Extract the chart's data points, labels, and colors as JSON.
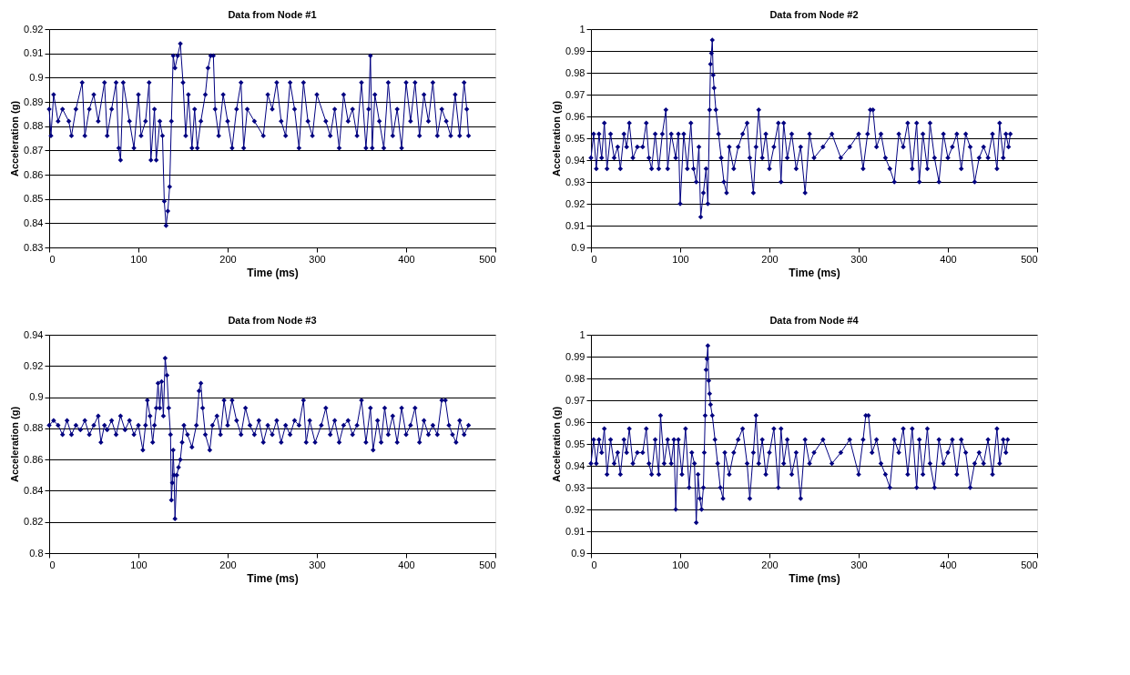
{
  "chart_data": [
    {
      "type": "line",
      "title": "Data from Node #1",
      "xlabel": "Time (ms)",
      "ylabel": "Acceleration (g)",
      "marker": "diamond",
      "line_style": "solid",
      "grid": "y",
      "xlim": [
        0,
        500
      ],
      "xticks": [
        0,
        100,
        200,
        300,
        400,
        500
      ],
      "ylim": [
        0.83,
        0.92
      ],
      "yticks": [
        0.83,
        0.84,
        0.85,
        0.86,
        0.87,
        0.88,
        0.89,
        0.9,
        0.91,
        0.92
      ],
      "series": [
        {
          "color": "#000080",
          "x": [
            0,
            2,
            5,
            10,
            15,
            22,
            25,
            30,
            37,
            40,
            45,
            50,
            55,
            62,
            65,
            70,
            75,
            78,
            80,
            83,
            90,
            95,
            100,
            103,
            108,
            112,
            114,
            118,
            120,
            124,
            127,
            129,
            131,
            133,
            135,
            137,
            139,
            141,
            144,
            147,
            150,
            153,
            156,
            160,
            163,
            166,
            170,
            175,
            178,
            181,
            184,
            186,
            190,
            195,
            200,
            205,
            210,
            215,
            218,
            222,
            230,
            240,
            245,
            250,
            255,
            260,
            265,
            270,
            275,
            280,
            285,
            290,
            295,
            300,
            310,
            315,
            320,
            325,
            330,
            335,
            340,
            345,
            350,
            355,
            358,
            360,
            362,
            365,
            370,
            375,
            380,
            385,
            390,
            395,
            400,
            405,
            410,
            415,
            420,
            425,
            430,
            435,
            440,
            445,
            450,
            455,
            460,
            465,
            468,
            470
          ],
          "values": [
            0.887,
            0.876,
            0.893,
            0.882,
            0.887,
            0.882,
            0.876,
            0.887,
            0.898,
            0.876,
            0.887,
            0.893,
            0.882,
            0.898,
            0.876,
            0.887,
            0.898,
            0.871,
            0.866,
            0.898,
            0.882,
            0.871,
            0.893,
            0.876,
            0.882,
            0.898,
            0.866,
            0.887,
            0.866,
            0.882,
            0.876,
            0.849,
            0.839,
            0.845,
            0.855,
            0.882,
            0.909,
            0.904,
            0.909,
            0.914,
            0.898,
            0.876,
            0.893,
            0.871,
            0.887,
            0.871,
            0.882,
            0.893,
            0.904,
            0.909,
            0.909,
            0.887,
            0.876,
            0.893,
            0.882,
            0.871,
            0.887,
            0.898,
            0.871,
            0.887,
            0.882,
            0.876,
            0.893,
            0.887,
            0.898,
            0.882,
            0.876,
            0.898,
            0.887,
            0.871,
            0.898,
            0.882,
            0.876,
            0.893,
            0.882,
            0.876,
            0.887,
            0.871,
            0.893,
            0.882,
            0.887,
            0.876,
            0.898,
            0.871,
            0.887,
            0.909,
            0.871,
            0.893,
            0.882,
            0.871,
            0.898,
            0.876,
            0.887,
            0.871,
            0.898,
            0.882,
            0.898,
            0.876,
            0.893,
            0.882,
            0.898,
            0.876,
            0.887,
            0.882,
            0.876,
            0.893,
            0.876,
            0.898,
            0.887,
            0.876
          ]
        }
      ]
    },
    {
      "type": "line",
      "title": "Data from Node #2",
      "xlabel": "Time (ms)",
      "ylabel": "Acceleration (g)",
      "marker": "diamond",
      "line_style": "solid",
      "grid": "y",
      "xlim": [
        0,
        500
      ],
      "xticks": [
        0,
        100,
        200,
        300,
        400,
        500
      ],
      "ylim": [
        0.9,
        1
      ],
      "yticks": [
        0.9,
        0.91,
        0.92,
        0.93,
        0.94,
        0.95,
        0.96,
        0.97,
        0.98,
        0.99,
        1
      ],
      "series": [
        {
          "color": "#000080",
          "x": [
            0,
            3,
            6,
            9,
            12,
            15,
            18,
            22,
            26,
            30,
            33,
            37,
            40,
            43,
            47,
            52,
            58,
            62,
            65,
            68,
            72,
            76,
            80,
            84,
            86,
            90,
            95,
            98,
            100,
            104,
            108,
            112,
            115,
            118,
            121,
            123,
            126,
            129,
            131,
            133,
            134,
            135,
            136,
            137,
            138,
            140,
            143,
            146,
            149,
            152,
            155,
            160,
            165,
            170,
            175,
            178,
            182,
            185,
            188,
            192,
            196,
            200,
            205,
            210,
            213,
            216,
            220,
            225,
            230,
            235,
            240,
            245,
            250,
            260,
            270,
            280,
            290,
            300,
            305,
            310,
            313,
            316,
            320,
            325,
            330,
            335,
            340,
            345,
            350,
            355,
            360,
            365,
            368,
            372,
            377,
            380,
            385,
            390,
            395,
            400,
            405,
            410,
            415,
            420,
            425,
            430,
            435,
            440,
            445,
            450,
            455,
            458,
            462,
            465,
            468,
            470
          ],
          "values": [
            0.941,
            0.952,
            0.936,
            0.952,
            0.941,
            0.957,
            0.936,
            0.952,
            0.941,
            0.946,
            0.936,
            0.952,
            0.946,
            0.957,
            0.941,
            0.946,
            0.946,
            0.957,
            0.941,
            0.936,
            0.952,
            0.936,
            0.952,
            0.963,
            0.936,
            0.952,
            0.941,
            0.952,
            0.92,
            0.952,
            0.936,
            0.957,
            0.936,
            0.93,
            0.946,
            0.914,
            0.925,
            0.936,
            0.92,
            0.963,
            0.984,
            0.989,
            0.995,
            0.979,
            0.973,
            0.963,
            0.952,
            0.941,
            0.93,
            0.925,
            0.946,
            0.936,
            0.946,
            0.952,
            0.957,
            0.941,
            0.925,
            0.946,
            0.963,
            0.941,
            0.952,
            0.936,
            0.946,
            0.957,
            0.93,
            0.957,
            0.941,
            0.952,
            0.936,
            0.946,
            0.925,
            0.952,
            0.941,
            0.946,
            0.952,
            0.941,
            0.946,
            0.952,
            0.936,
            0.952,
            0.963,
            0.963,
            0.946,
            0.952,
            0.941,
            0.936,
            0.93,
            0.952,
            0.946,
            0.957,
            0.936,
            0.957,
            0.93,
            0.952,
            0.936,
            0.957,
            0.941,
            0.93,
            0.952,
            0.941,
            0.946,
            0.952,
            0.936,
            0.952,
            0.946,
            0.93,
            0.941,
            0.946,
            0.941,
            0.952,
            0.936,
            0.957,
            0.941,
            0.952,
            0.946,
            0.952
          ]
        }
      ]
    },
    {
      "type": "line",
      "title": "Data from Node #3",
      "xlabel": "Time (ms)",
      "ylabel": "Acceleration (g)",
      "marker": "diamond",
      "line_style": "solid",
      "grid": "y",
      "xlim": [
        0,
        500
      ],
      "xticks": [
        0,
        100,
        200,
        300,
        400,
        500
      ],
      "ylim": [
        0.8,
        0.94
      ],
      "yticks": [
        0.8,
        0.82,
        0.84,
        0.86,
        0.88,
        0.9,
        0.92,
        0.94
      ],
      "series": [
        {
          "color": "#000080",
          "x": [
            0,
            5,
            10,
            15,
            20,
            25,
            30,
            35,
            40,
            45,
            50,
            55,
            58,
            62,
            65,
            70,
            75,
            80,
            85,
            90,
            95,
            100,
            105,
            108,
            110,
            113,
            116,
            118,
            120,
            122,
            124,
            126,
            128,
            130,
            132,
            134,
            136,
            137,
            138,
            139,
            140,
            141,
            143,
            145,
            147,
            149,
            151,
            155,
            160,
            165,
            168,
            170,
            172,
            175,
            180,
            183,
            188,
            192,
            196,
            200,
            205,
            210,
            215,
            220,
            225,
            230,
            235,
            240,
            245,
            250,
            255,
            260,
            265,
            270,
            275,
            280,
            285,
            288,
            292,
            298,
            305,
            310,
            315,
            320,
            325,
            330,
            335,
            340,
            345,
            350,
            355,
            360,
            363,
            368,
            372,
            376,
            380,
            385,
            390,
            395,
            400,
            405,
            410,
            415,
            420,
            425,
            430,
            435,
            440,
            444,
            448,
            452,
            456,
            460,
            465,
            470
          ],
          "values": [
            0.882,
            0.885,
            0.882,
            0.876,
            0.885,
            0.876,
            0.882,
            0.879,
            0.885,
            0.876,
            0.882,
            0.888,
            0.871,
            0.882,
            0.879,
            0.885,
            0.876,
            0.888,
            0.879,
            0.885,
            0.876,
            0.882,
            0.866,
            0.882,
            0.898,
            0.888,
            0.871,
            0.882,
            0.893,
            0.909,
            0.893,
            0.91,
            0.888,
            0.925,
            0.914,
            0.893,
            0.876,
            0.834,
            0.845,
            0.866,
            0.85,
            0.822,
            0.85,
            0.855,
            0.86,
            0.871,
            0.882,
            0.876,
            0.868,
            0.882,
            0.904,
            0.909,
            0.893,
            0.876,
            0.866,
            0.882,
            0.888,
            0.876,
            0.898,
            0.882,
            0.898,
            0.885,
            0.876,
            0.893,
            0.882,
            0.876,
            0.885,
            0.871,
            0.882,
            0.876,
            0.885,
            0.871,
            0.882,
            0.876,
            0.885,
            0.882,
            0.898,
            0.871,
            0.885,
            0.871,
            0.882,
            0.893,
            0.876,
            0.885,
            0.871,
            0.882,
            0.885,
            0.876,
            0.882,
            0.898,
            0.871,
            0.893,
            0.866,
            0.885,
            0.871,
            0.893,
            0.876,
            0.888,
            0.871,
            0.893,
            0.876,
            0.882,
            0.893,
            0.871,
            0.885,
            0.876,
            0.882,
            0.876,
            0.898,
            0.898,
            0.882,
            0.876,
            0.871,
            0.885,
            0.876,
            0.882
          ]
        }
      ]
    },
    {
      "type": "line",
      "title": "Data from Node #4",
      "xlabel": "Time (ms)",
      "ylabel": "Acceleration (g)",
      "marker": "diamond",
      "line_style": "solid",
      "grid": "y",
      "xlim": [
        0,
        500
      ],
      "xticks": [
        0,
        100,
        200,
        300,
        400,
        500
      ],
      "ylim": [
        0.9,
        1
      ],
      "yticks": [
        0.9,
        0.91,
        0.92,
        0.93,
        0.94,
        0.95,
        0.96,
        0.97,
        0.98,
        0.99,
        1
      ],
      "series": [
        {
          "color": "#000080",
          "x": [
            0,
            3,
            6,
            9,
            12,
            15,
            18,
            22,
            26,
            30,
            33,
            37,
            40,
            43,
            47,
            52,
            58,
            62,
            65,
            68,
            72,
            76,
            78,
            82,
            86,
            90,
            93,
            95,
            98,
            102,
            106,
            110,
            113,
            116,
            118,
            120,
            122,
            124,
            126,
            127,
            128,
            129,
            130,
            131,
            132,
            133,
            134,
            136,
            139,
            142,
            145,
            148,
            150,
            155,
            160,
            165,
            170,
            175,
            178,
            182,
            185,
            188,
            192,
            196,
            200,
            205,
            210,
            213,
            216,
            220,
            225,
            230,
            235,
            240,
            245,
            250,
            260,
            270,
            280,
            290,
            300,
            305,
            308,
            311,
            315,
            320,
            325,
            330,
            335,
            340,
            345,
            350,
            355,
            360,
            365,
            368,
            372,
            377,
            380,
            385,
            390,
            395,
            400,
            405,
            410,
            415,
            420,
            425,
            430,
            435,
            440,
            445,
            450,
            455,
            458,
            462,
            465,
            467
          ],
          "values": [
            0.941,
            0.952,
            0.941,
            0.952,
            0.946,
            0.957,
            0.936,
            0.952,
            0.941,
            0.946,
            0.936,
            0.952,
            0.946,
            0.957,
            0.941,
            0.946,
            0.946,
            0.957,
            0.941,
            0.936,
            0.952,
            0.936,
            0.963,
            0.941,
            0.952,
            0.941,
            0.952,
            0.92,
            0.952,
            0.936,
            0.957,
            0.93,
            0.946,
            0.941,
            0.914,
            0.936,
            0.925,
            0.92,
            0.93,
            0.946,
            0.963,
            0.984,
            0.989,
            0.995,
            0.979,
            0.973,
            0.968,
            0.963,
            0.952,
            0.941,
            0.93,
            0.925,
            0.946,
            0.936,
            0.946,
            0.952,
            0.957,
            0.941,
            0.925,
            0.946,
            0.963,
            0.941,
            0.952,
            0.936,
            0.946,
            0.957,
            0.93,
            0.957,
            0.941,
            0.952,
            0.936,
            0.946,
            0.925,
            0.952,
            0.941,
            0.946,
            0.952,
            0.941,
            0.946,
            0.952,
            0.936,
            0.952,
            0.963,
            0.963,
            0.946,
            0.952,
            0.941,
            0.936,
            0.93,
            0.952,
            0.946,
            0.957,
            0.936,
            0.957,
            0.93,
            0.952,
            0.936,
            0.957,
            0.941,
            0.93,
            0.952,
            0.941,
            0.946,
            0.952,
            0.936,
            0.952,
            0.946,
            0.93,
            0.941,
            0.946,
            0.941,
            0.952,
            0.936,
            0.957,
            0.941,
            0.952,
            0.946,
            0.952
          ]
        }
      ]
    }
  ]
}
